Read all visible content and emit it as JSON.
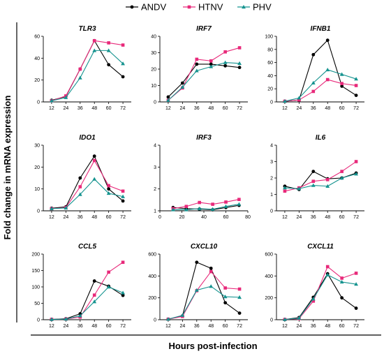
{
  "legend": [
    {
      "name": "ANDV",
      "color": "#000000",
      "marker": "circle"
    },
    {
      "name": "HTNV",
      "color": "#e8297a",
      "marker": "square"
    },
    {
      "name": "PHV",
      "color": "#15938f",
      "marker": "triangle"
    }
  ],
  "ylabel": "Fold change in mRNA expression",
  "xlabel": "Hours post-infection",
  "chart_data": [
    {
      "type": "line",
      "title": "TLR3",
      "xlabel": "",
      "ylabel": "",
      "x": [
        12,
        24,
        36,
        48,
        60,
        72
      ],
      "xticks": [
        12,
        24,
        36,
        48,
        60,
        72
      ],
      "xlim": [
        5,
        79
      ],
      "ylim": [
        0,
        60
      ],
      "yticks": [
        0,
        20,
        40,
        60
      ],
      "series": [
        {
          "name": "ANDV",
          "values": [
            1.5,
            5,
            30,
            56,
            34,
            23
          ]
        },
        {
          "name": "HTNV",
          "values": [
            1,
            5.5,
            30,
            56,
            54,
            52
          ]
        },
        {
          "name": "PHV",
          "values": [
            1,
            4,
            22,
            47,
            47,
            35
          ]
        }
      ]
    },
    {
      "type": "line",
      "title": "IRF7",
      "xlabel": "",
      "ylabel": "",
      "x": [
        12,
        24,
        36,
        48,
        60,
        72
      ],
      "xticks": [
        12,
        24,
        36,
        48,
        60,
        72
      ],
      "xlim": [
        5,
        79
      ],
      "ylim": [
        0,
        40
      ],
      "yticks": [
        0,
        10,
        20,
        30,
        40
      ],
      "series": [
        {
          "name": "ANDV",
          "values": [
            3,
            11.5,
            23,
            23,
            22,
            21
          ]
        },
        {
          "name": "HTNV",
          "values": [
            1,
            8.5,
            26,
            25,
            30.5,
            33
          ]
        },
        {
          "name": "PHV",
          "values": [
            1,
            9,
            19,
            21.5,
            24,
            23.5
          ]
        }
      ]
    },
    {
      "type": "line",
      "title": "IFNB1",
      "xlabel": "",
      "ylabel": "",
      "x": [
        12,
        24,
        36,
        48,
        60,
        72
      ],
      "xticks": [
        12,
        24,
        36,
        48,
        60,
        72
      ],
      "xlim": [
        5,
        79
      ],
      "ylim": [
        0,
        100
      ],
      "yticks": [
        0,
        20,
        40,
        60,
        80,
        100
      ],
      "series": [
        {
          "name": "ANDV",
          "values": [
            1,
            3,
            72,
            94,
            24,
            10
          ]
        },
        {
          "name": "HTNV",
          "values": [
            1,
            3,
            16,
            34,
            28,
            25
          ]
        },
        {
          "name": "PHV",
          "values": [
            1,
            6,
            29,
            49,
            42,
            35
          ]
        }
      ]
    },
    {
      "type": "line",
      "title": "IDO1",
      "xlabel": "",
      "ylabel": "",
      "x": [
        12,
        24,
        36,
        48,
        60,
        72
      ],
      "xticks": [
        12,
        24,
        36,
        48,
        60,
        72
      ],
      "xlim": [
        5,
        79
      ],
      "ylim": [
        0,
        30
      ],
      "yticks": [
        0,
        10,
        20,
        30
      ],
      "series": [
        {
          "name": "ANDV",
          "values": [
            1.2,
            1.8,
            15,
            25,
            10,
            4.5
          ]
        },
        {
          "name": "HTNV",
          "values": [
            1,
            1.5,
            11,
            23,
            11.5,
            9
          ]
        },
        {
          "name": "PHV",
          "values": [
            1,
            1.3,
            7.5,
            14.5,
            8,
            6.5
          ]
        }
      ]
    },
    {
      "type": "line",
      "title": "IRF3",
      "xlabel": "",
      "ylabel": "",
      "x": [
        12,
        24,
        36,
        48,
        60,
        72
      ],
      "xticks": [
        0,
        20,
        40,
        60,
        80
      ],
      "xlim": [
        0,
        80
      ],
      "ylim": [
        1,
        4
      ],
      "yticks": [
        1,
        2,
        3,
        4
      ],
      "series": [
        {
          "name": "ANDV",
          "values": [
            1.15,
            1.1,
            1.08,
            1.05,
            1.15,
            1.25
          ]
        },
        {
          "name": "HTNV",
          "values": [
            1.1,
            1.2,
            1.38,
            1.3,
            1.4,
            1.52
          ]
        },
        {
          "name": "PHV",
          "values": [
            1.05,
            1.05,
            1.1,
            1.07,
            1.2,
            1.3
          ]
        }
      ]
    },
    {
      "type": "line",
      "title": "IL6",
      "xlabel": "",
      "ylabel": "",
      "x": [
        12,
        24,
        36,
        48,
        60,
        72
      ],
      "xticks": [
        12,
        24,
        36,
        48,
        60,
        72
      ],
      "xlim": [
        5,
        79
      ],
      "ylim": [
        0,
        4
      ],
      "yticks": [
        0,
        1,
        2,
        3,
        4
      ],
      "series": [
        {
          "name": "ANDV",
          "values": [
            1.5,
            1.3,
            2.4,
            1.95,
            2,
            2.3
          ]
        },
        {
          "name": "HTNV",
          "values": [
            1.2,
            1.4,
            1.8,
            1.9,
            2.4,
            3
          ]
        },
        {
          "name": "PHV",
          "values": [
            1.4,
            1.35,
            1.55,
            1.5,
            2,
            2.25
          ]
        }
      ]
    },
    {
      "type": "line",
      "title": "CCL5",
      "xlabel": "",
      "ylabel": "",
      "x": [
        12,
        24,
        36,
        48,
        60,
        72
      ],
      "xticks": [
        12,
        24,
        36,
        48,
        60,
        72
      ],
      "xlim": [
        5,
        79
      ],
      "ylim": [
        0,
        200
      ],
      "yticks": [
        0,
        50,
        100,
        150,
        200
      ],
      "series": [
        {
          "name": "ANDV",
          "values": [
            1,
            3,
            18,
            118,
            102,
            74
          ]
        },
        {
          "name": "HTNV",
          "values": [
            1,
            2,
            8,
            75,
            145,
            175
          ]
        },
        {
          "name": "PHV",
          "values": [
            1,
            2,
            12,
            55,
            100,
            82
          ]
        }
      ]
    },
    {
      "type": "line",
      "title": "CXCL10",
      "xlabel": "",
      "ylabel": "",
      "x": [
        12,
        24,
        36,
        48,
        60,
        72
      ],
      "xticks": [
        12,
        24,
        36,
        48,
        60,
        72
      ],
      "xlim": [
        5,
        79
      ],
      "ylim": [
        0,
        600
      ],
      "yticks": [
        0,
        200,
        400,
        600
      ],
      "series": [
        {
          "name": "ANDV",
          "values": [
            5,
            35,
            525,
            470,
            155,
            60
          ]
        },
        {
          "name": "HTNV",
          "values": [
            5,
            30,
            265,
            440,
            290,
            280
          ]
        },
        {
          "name": "PHV",
          "values": [
            5,
            40,
            270,
            305,
            210,
            205
          ]
        }
      ]
    },
    {
      "type": "line",
      "title": "CXCL11",
      "xlabel": "",
      "ylabel": "",
      "x": [
        12,
        24,
        36,
        48,
        60,
        72
      ],
      "xticks": [
        12,
        24,
        36,
        48,
        60,
        72
      ],
      "xlim": [
        5,
        79
      ],
      "ylim": [
        0,
        600
      ],
      "yticks": [
        0,
        200,
        400,
        600
      ],
      "series": [
        {
          "name": "ANDV",
          "values": [
            2,
            20,
            205,
            420,
            200,
            105
          ]
        },
        {
          "name": "HTNV",
          "values": [
            2,
            10,
            170,
            485,
            380,
            425
          ]
        },
        {
          "name": "PHV",
          "values": [
            2,
            15,
            190,
            410,
            345,
            325
          ]
        }
      ]
    }
  ]
}
